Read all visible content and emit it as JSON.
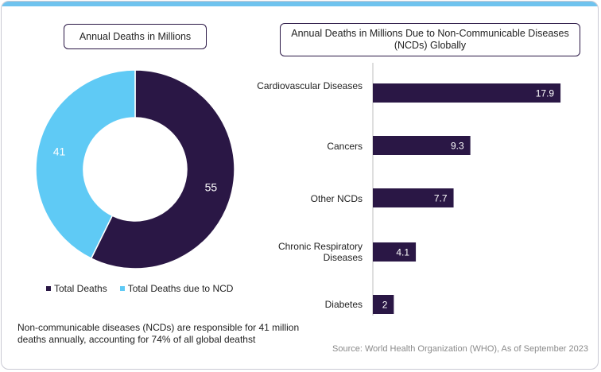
{
  "colors": {
    "dark": "#2a1745",
    "light": "#5fcaf5",
    "accent_bar": "#6fc3ee"
  },
  "donut": {
    "title": "Annual Deaths in Millions",
    "legend": [
      "Total Deaths",
      "Total Deaths due to NCD"
    ]
  },
  "bars": {
    "title": "Annual Deaths in Millions Due to Non-Communicable Diseases (NCDs) Globally"
  },
  "note": "Non-communicable diseases (NCDs) are responsible for 41 million deaths annually, accounting for 74% of all global deathst",
  "source": "Source: World Health Organization (WHO), As of September 2023",
  "chart_data": [
    {
      "type": "pie",
      "title": "Annual Deaths in Millions",
      "categories": [
        "Total Deaths",
        "Total Deaths due to NCD"
      ],
      "values": [
        55,
        41
      ],
      "labels": [
        "55",
        "41"
      ]
    },
    {
      "type": "bar",
      "orientation": "horizontal",
      "title": "Annual Deaths in Millions Due to Non-Communicable Diseases (NCDs) Globally",
      "categories": [
        "Cardiovascular Diseases",
        "Cancers",
        "Other NCDs",
        "Chronic Respiratory Diseases",
        "Diabetes"
      ],
      "values": [
        17.9,
        9.3,
        7.7,
        4.1,
        2
      ],
      "labels": [
        "17.9",
        "9.3",
        "7.7",
        "4.1",
        "2"
      ],
      "xlim": [
        0,
        18.5
      ]
    }
  ]
}
